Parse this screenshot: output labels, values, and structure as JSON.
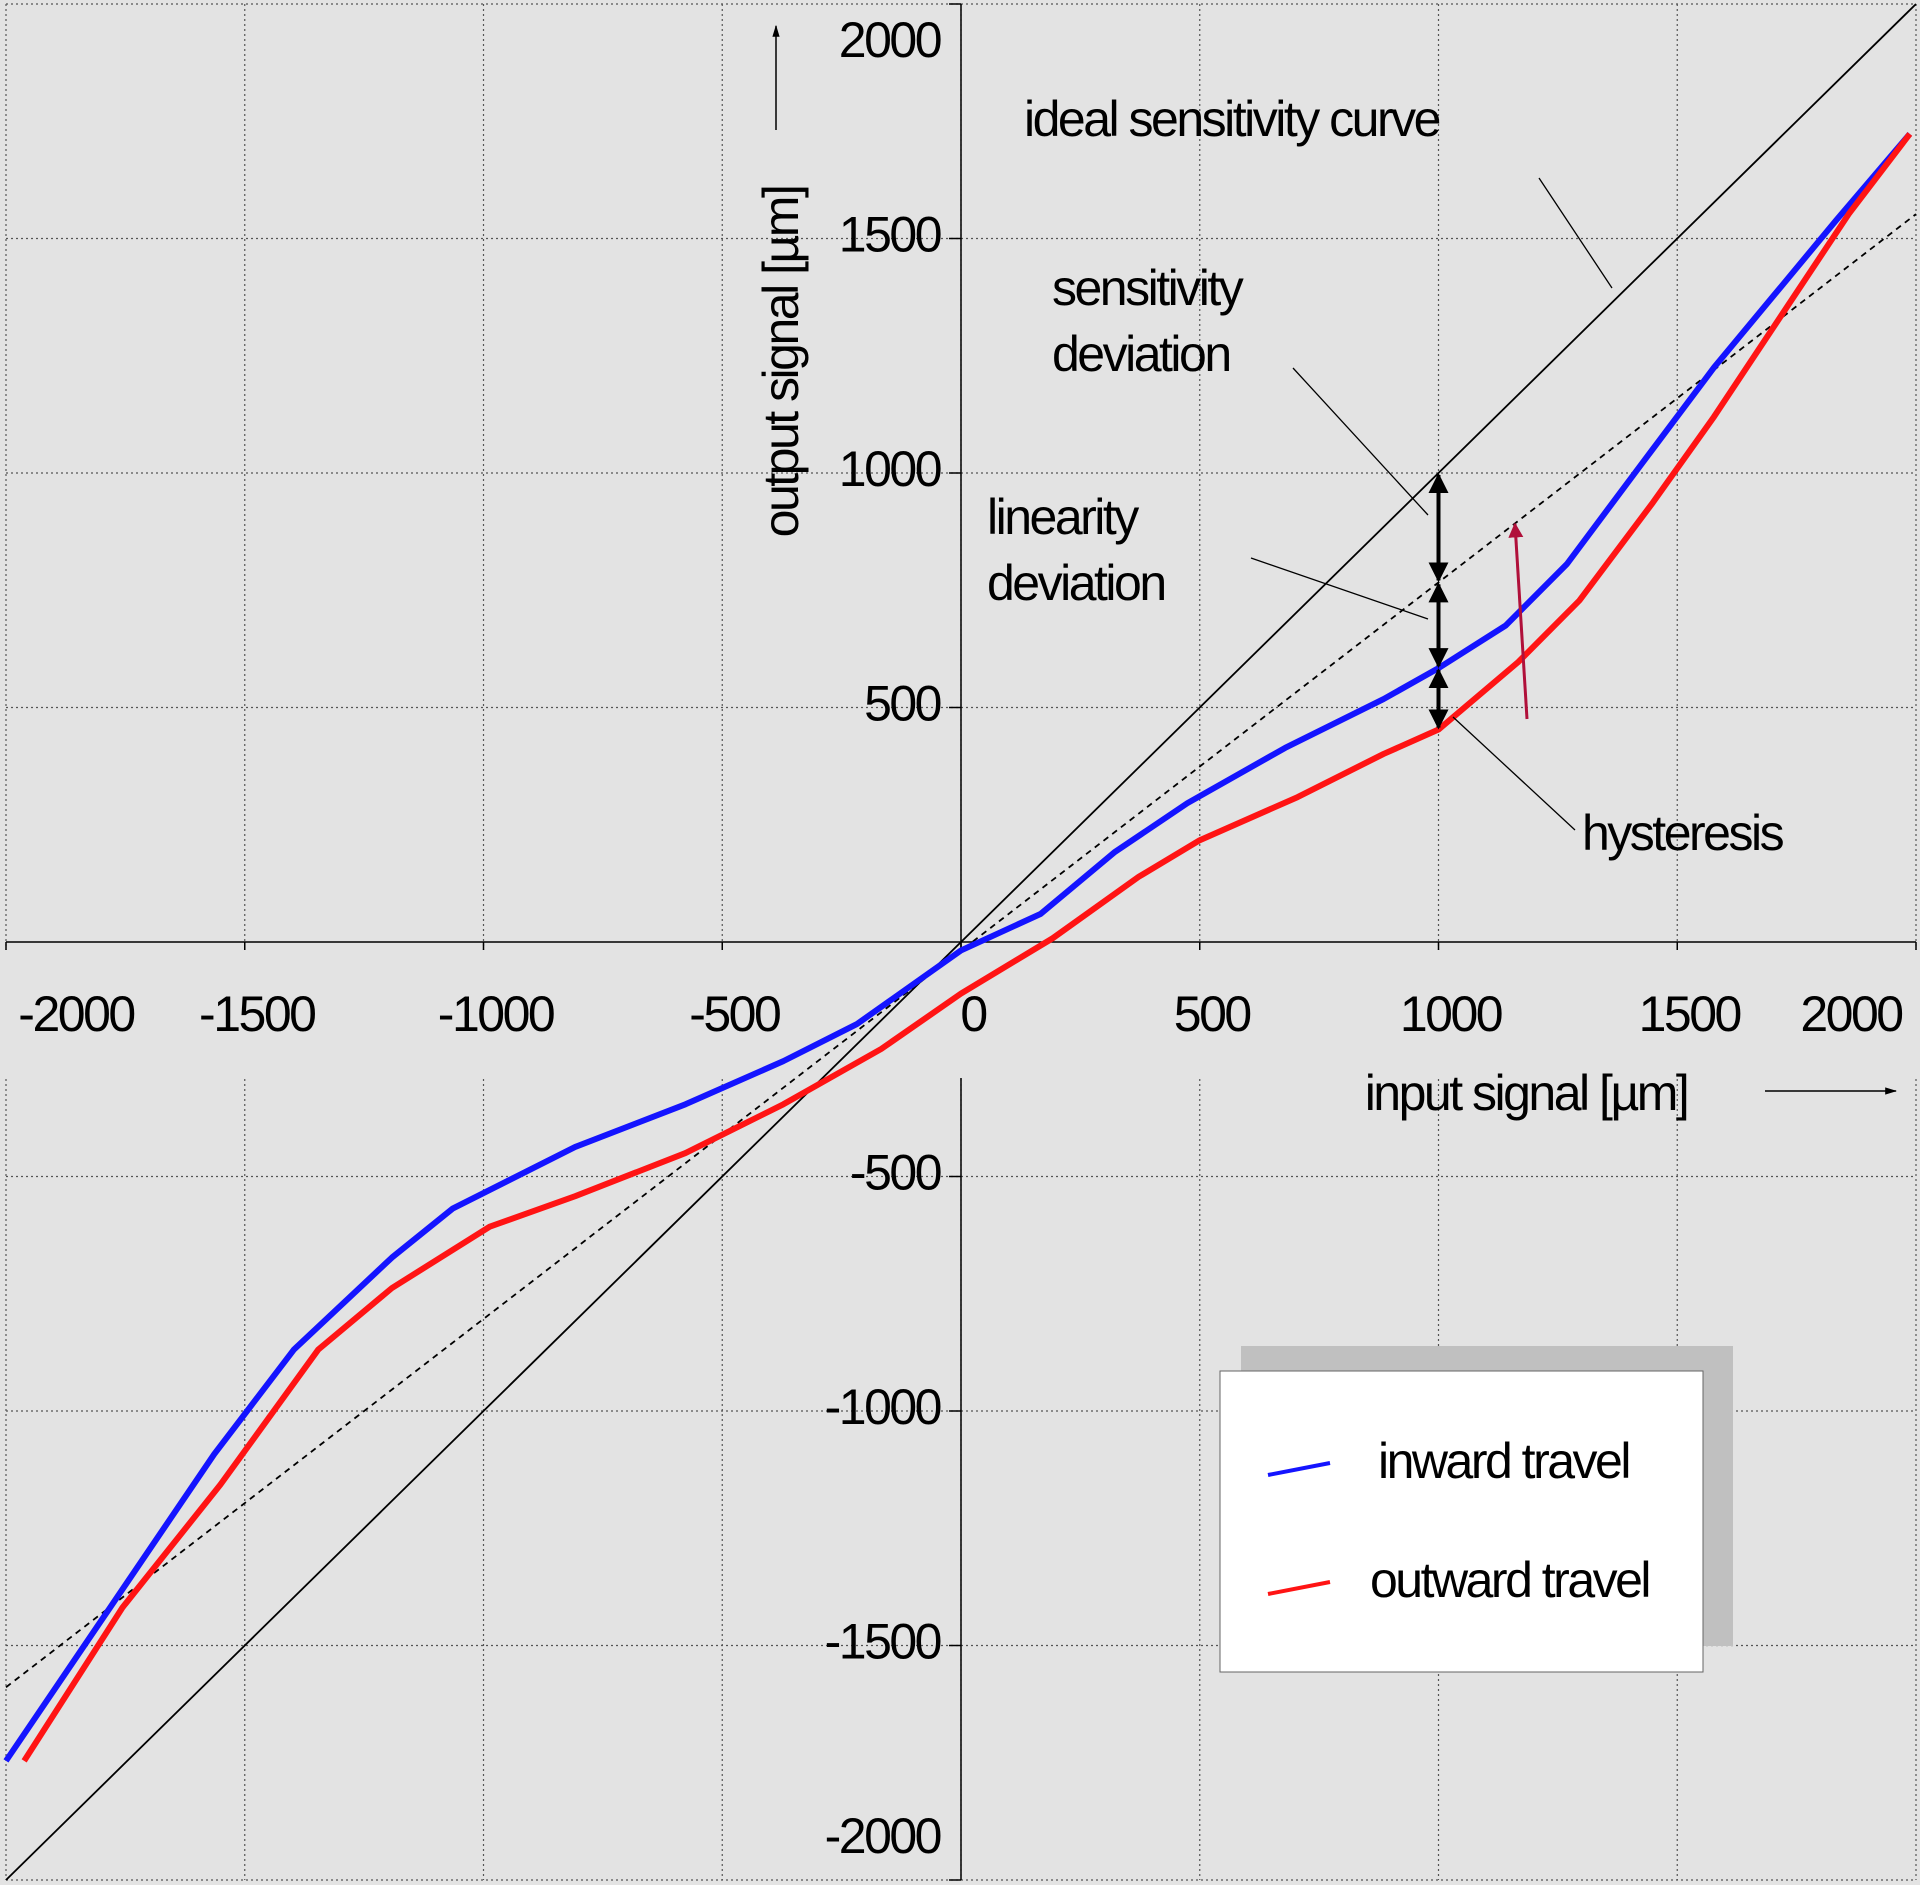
{
  "chart_data": {
    "type": "line",
    "x_label": "input signal [µm]",
    "y_label": "output signal [µm]",
    "xlim": [
      -2000,
      2000
    ],
    "ylim": [
      -2000,
      2000
    ],
    "xticks": [
      -2000,
      -1500,
      -1000,
      -500,
      0,
      500,
      1000,
      1500,
      2000
    ],
    "yticks": [
      -2000,
      -1500,
      -1000,
      -500,
      500,
      1000,
      1500,
      2000
    ],
    "grid": true,
    "legend": "lower right",
    "series": [
      {
        "name": "inward travel",
        "color": "#1414ff",
        "x": [
          -2000,
          -1782,
          -1564,
          -1397,
          -1192,
          -1064,
          -808,
          -577,
          -372,
          -218,
          0,
          167,
          321,
          474,
          679,
          885,
          1000,
          1141,
          1269,
          1423,
          1577,
          1705,
          1833,
          1987
        ],
        "values": [
          -1746,
          -1419,
          -1092,
          -869,
          -673,
          -568,
          -437,
          -346,
          -254,
          -175,
          -18,
          60,
          191,
          296,
          414,
          518,
          584,
          675,
          806,
          1016,
          1225,
          1382,
          1539,
          1723
        ]
      },
      {
        "name": "outward travel",
        "color": "#ff1414",
        "x": [
          -1962,
          -1756,
          -1551,
          -1346,
          -1192,
          -987,
          -808,
          -577,
          -372,
          -167,
          0,
          192,
          372,
          500,
          705,
          885,
          1000,
          1167,
          1295,
          1449,
          1577,
          1731,
          1859,
          1987
        ],
        "values": [
          -1746,
          -1419,
          -1157,
          -869,
          -738,
          -607,
          -542,
          -450,
          -346,
          -228,
          -110,
          8,
          139,
          217,
          309,
          401,
          453,
          597,
          728,
          937,
          1120,
          1356,
          1552,
          1723
        ]
      }
    ],
    "reference_lines": [
      {
        "style": "solid",
        "color": "#000000",
        "x": [
          -2000,
          2000
        ],
        "values": [
          -2000,
          2000
        ]
      },
      {
        "style": "dashed",
        "color": "#000000",
        "x": [
          -2000,
          2000
        ],
        "values": [
          -1589,
          1552
        ]
      }
    ],
    "annotations": [
      {
        "lines": [
          "ideal sensitivity curve"
        ]
      },
      {
        "lines": [
          "sensitivity",
          "deviation"
        ]
      },
      {
        "lines": [
          "linearity",
          "deviation"
        ]
      },
      {
        "lines": [
          "hysteresis"
        ]
      }
    ],
    "deviation_x": 1000
  }
}
